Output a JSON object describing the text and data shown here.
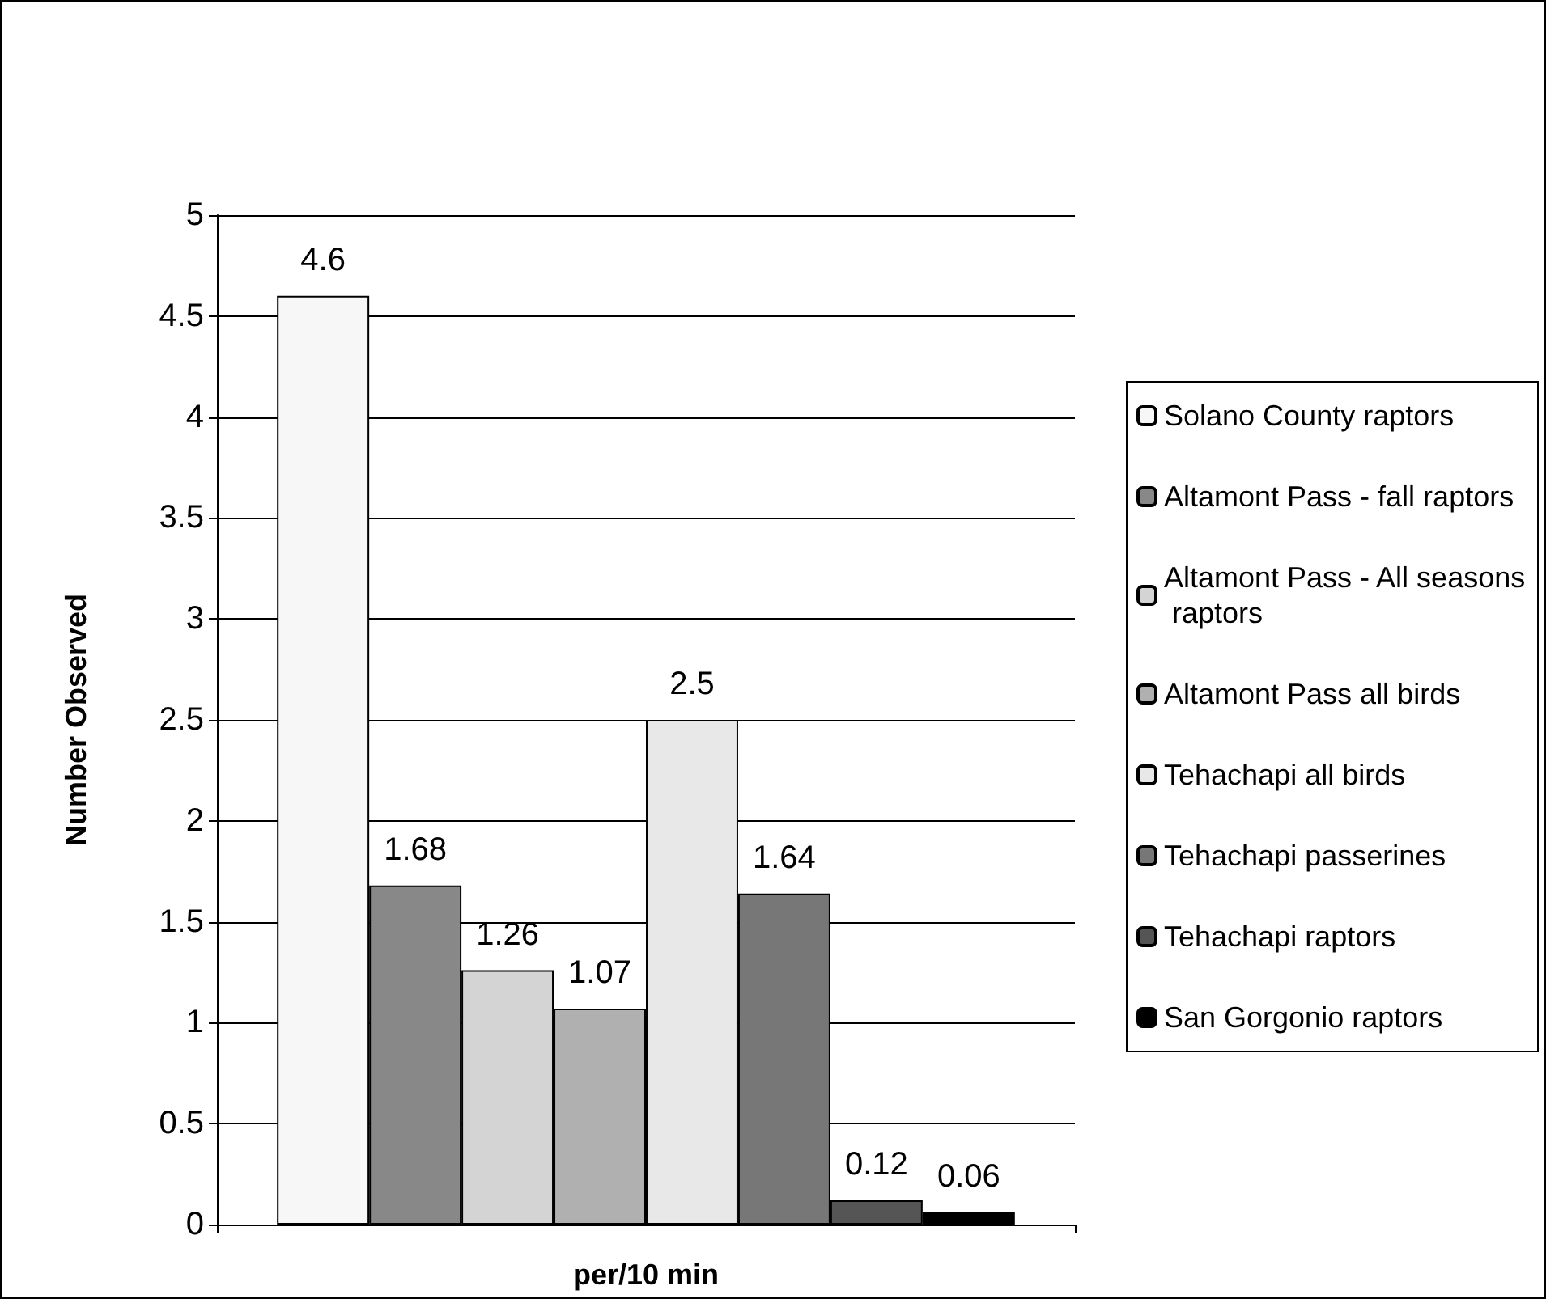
{
  "chart_data": {
    "type": "bar",
    "ylabel": "Number Observed",
    "xlabel": "per/10 min",
    "categories": [
      null
    ],
    "series": [
      {
        "name": "Solano County raptors",
        "color": "#f7f7f7",
        "values": [
          4.6
        ]
      },
      {
        "name": "Altamont Pass - fall raptors",
        "color": "#888888",
        "values": [
          1.68
        ]
      },
      {
        "name": "Altamont Pass - All seasons raptors",
        "color": "#d4d4d4",
        "values": [
          1.26
        ]
      },
      {
        "name": "Altamont Pass all birds",
        "color": "#b0b0b0",
        "values": [
          1.07
        ]
      },
      {
        "name": "Tehachapi all birds",
        "color": "#e8e8e8",
        "values": [
          2.5
        ]
      },
      {
        "name": "Tehachapi passerines",
        "color": "#777777",
        "values": [
          1.64
        ]
      },
      {
        "name": "Tehachapi raptors",
        "color": "#555555",
        "values": [
          0.12
        ]
      },
      {
        "name": "San Gorgonio raptors",
        "color": "#000000",
        "values": [
          0.06
        ]
      }
    ],
    "ylim": [
      0,
      5
    ],
    "yticks": [
      0,
      0.5,
      1,
      1.5,
      2,
      2.5,
      3,
      3.5,
      4,
      4.5,
      5
    ],
    "grid": "y",
    "legend": "right",
    "data_labels": true
  }
}
